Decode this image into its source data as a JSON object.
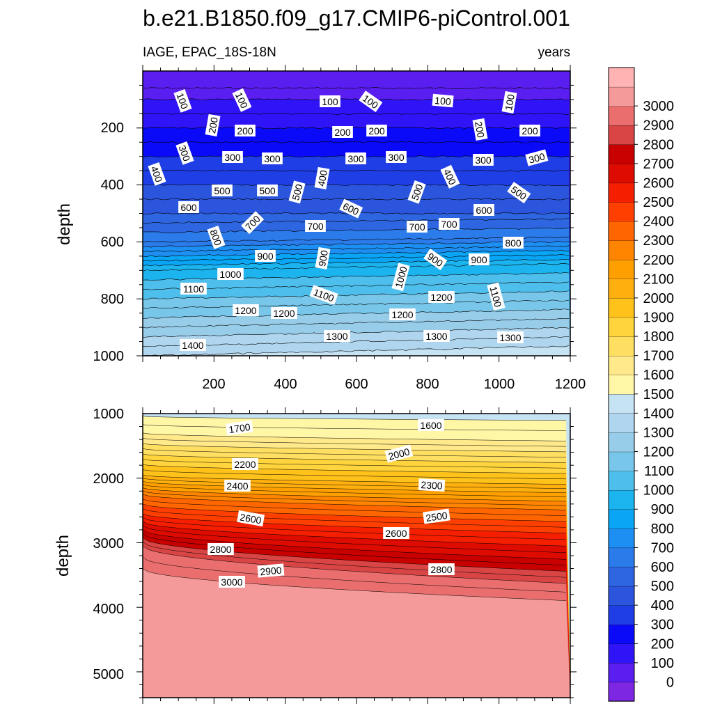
{
  "title": "b.e21.B1850.f09_g17.CMIP6-piControl.001",
  "left_subtitle": "IAGE, EPAC_18S-18N",
  "right_subtitle": "years",
  "chart_data": [
    {
      "type": "heatmap",
      "panel": "upper",
      "ylabel": "depth",
      "xlabel": "",
      "xlim": [
        0,
        1200
      ],
      "ylim": [
        0,
        1000
      ],
      "y_reversed": true,
      "x_ticks": [
        "200",
        "400",
        "600",
        "800",
        "1000",
        "1200"
      ],
      "y_ticks": [
        "200",
        "400",
        "600",
        "800",
        "1000"
      ],
      "contour_labels": [
        "100",
        "200",
        "300",
        "400",
        "500",
        "600",
        "700",
        "800",
        "900",
        "1000",
        "1100",
        "1200",
        "1300",
        "1400"
      ],
      "iage_profile": {
        "depth": [
          0,
          60,
          100,
          200,
          300,
          400,
          500,
          600,
          700,
          800,
          900,
          1000
        ],
        "iage": [
          0,
          50,
          100,
          200,
          300,
          400,
          500,
          650,
          950,
          1100,
          1250,
          1400
        ]
      }
    },
    {
      "type": "heatmap",
      "panel": "lower",
      "ylabel": "depth",
      "xlabel": "",
      "xlim": [
        0,
        1200
      ],
      "ylim": [
        1000,
        5400
      ],
      "y_reversed": true,
      "x_ticks": [],
      "y_ticks": [
        "1000",
        "2000",
        "3000",
        "4000",
        "5000"
      ],
      "contour_labels": [
        "1600",
        "1700",
        "2000",
        "2200",
        "2300",
        "2400",
        "2500",
        "2600",
        "2800",
        "2900",
        "3000"
      ]
    }
  ],
  "colorbar": {
    "labels": [
      "0",
      "100",
      "200",
      "300",
      "400",
      "500",
      "600",
      "700",
      "800",
      "900",
      "1000",
      "1100",
      "1200",
      "1300",
      "1400",
      "1500",
      "1600",
      "1700",
      "1800",
      "1900",
      "2000",
      "2100",
      "2200",
      "2300",
      "2400",
      "2500",
      "2600",
      "2700",
      "2800",
      "2900",
      "3000"
    ],
    "colors": [
      "#7d27e3",
      "#5a1ef0",
      "#2f14f7",
      "#0a0af8",
      "#1f3ee6",
      "#2b55dd",
      "#2d66e0",
      "#2b7bea",
      "#1d8ff3",
      "#0aa5f5",
      "#1cb4ef",
      "#4ebfec",
      "#78c7ea",
      "#98cdea",
      "#b0d6ef",
      "#c6e3f3",
      "#fff6a6",
      "#ffe98a",
      "#ffdf62",
      "#ffd43c",
      "#ffc21a",
      "#ffb00f",
      "#ffa000",
      "#ff8400",
      "#ff6600",
      "#ff3f00",
      "#f51f00",
      "#dd0b00",
      "#c80000",
      "#d94545",
      "#ea6e6e",
      "#f59a9a",
      "#ffb3b3"
    ]
  }
}
